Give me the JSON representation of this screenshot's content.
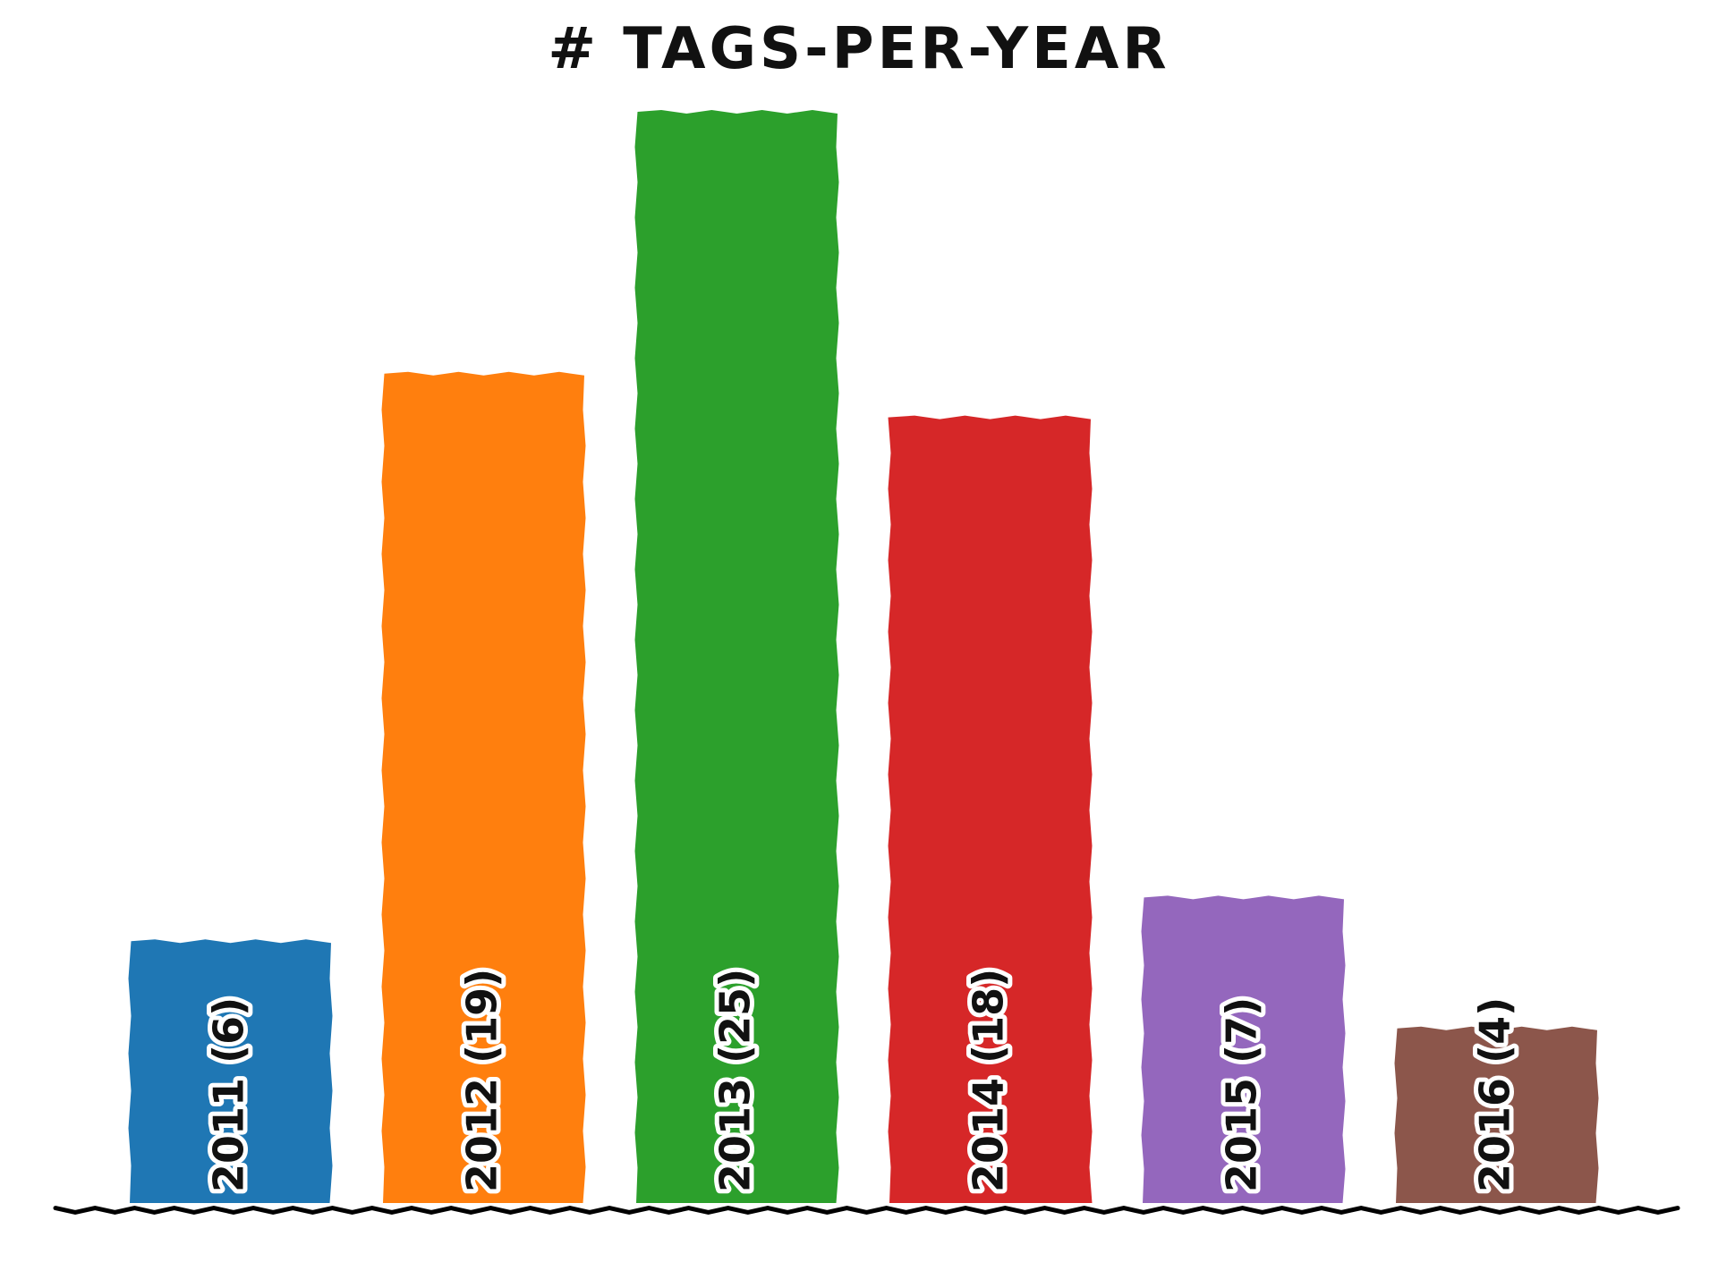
{
  "chart_data": {
    "type": "bar",
    "title": "# tags-per-year",
    "categories": [
      "2011",
      "2012",
      "2013",
      "2014",
      "2015",
      "2016"
    ],
    "values": [
      6,
      19,
      25,
      18,
      7,
      4
    ],
    "bar_labels": [
      "2011 (6)",
      "2012 (19)",
      "2013 (25)",
      "2014 (18)",
      "2015 (7)",
      "2016 (4)"
    ],
    "colors": [
      "#1f77b4",
      "#ff7f0e",
      "#2ca02c",
      "#d62728",
      "#9467bd",
      "#8c564b"
    ],
    "ylim": [
      0,
      25
    ],
    "grid": false,
    "xlabel": "",
    "ylabel": ""
  }
}
